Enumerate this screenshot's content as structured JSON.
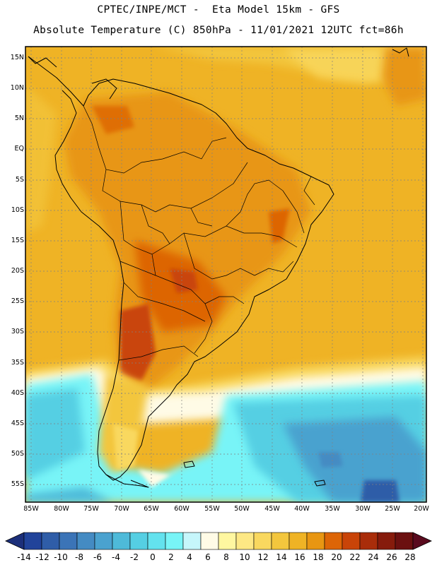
{
  "header": {
    "line1": "CPTEC/INPE/MCT -  Eta Model 15km - GFS",
    "line2": "Absolute Temperature (C) 850hPa - 11/01/2021 12UTC fct=86h"
  },
  "map": {
    "region": "South America",
    "lat_ticks": [
      "15N",
      "10N",
      "5N",
      "EQ",
      "5S",
      "10S",
      "15S",
      "20S",
      "25S",
      "30S",
      "35S",
      "40S",
      "45S",
      "50S",
      "55S"
    ],
    "lon_ticks": [
      "85W",
      "80W",
      "75W",
      "70W",
      "65W",
      "60W",
      "55W",
      "50W",
      "45W",
      "40W",
      "35W",
      "30W",
      "25W",
      "20W"
    ]
  },
  "colorbar": {
    "labels": [
      "-14",
      "-12",
      "-10",
      "-8",
      "-6",
      "-4",
      "-2",
      "0",
      "2",
      "4",
      "6",
      "8",
      "10",
      "12",
      "14",
      "16",
      "18",
      "20",
      "22",
      "24",
      "26",
      "28"
    ],
    "colors": [
      "#21439a",
      "#2f5da8",
      "#3b74b7",
      "#448bc3",
      "#4aa2cf",
      "#4ebad9",
      "#55cfe3",
      "#63e2ee",
      "#78f4f7",
      "#c6f6fb",
      "#fffbe6",
      "#fff7a0",
      "#fde884",
      "#f9d85f",
      "#f3c63d",
      "#efb325",
      "#e89612",
      "#dd6506",
      "#c94408",
      "#a92d0a",
      "#861b0c",
      "#6b1010"
    ],
    "under_color": "#1c2f7a",
    "over_color": "#5a0a1e"
  }
}
